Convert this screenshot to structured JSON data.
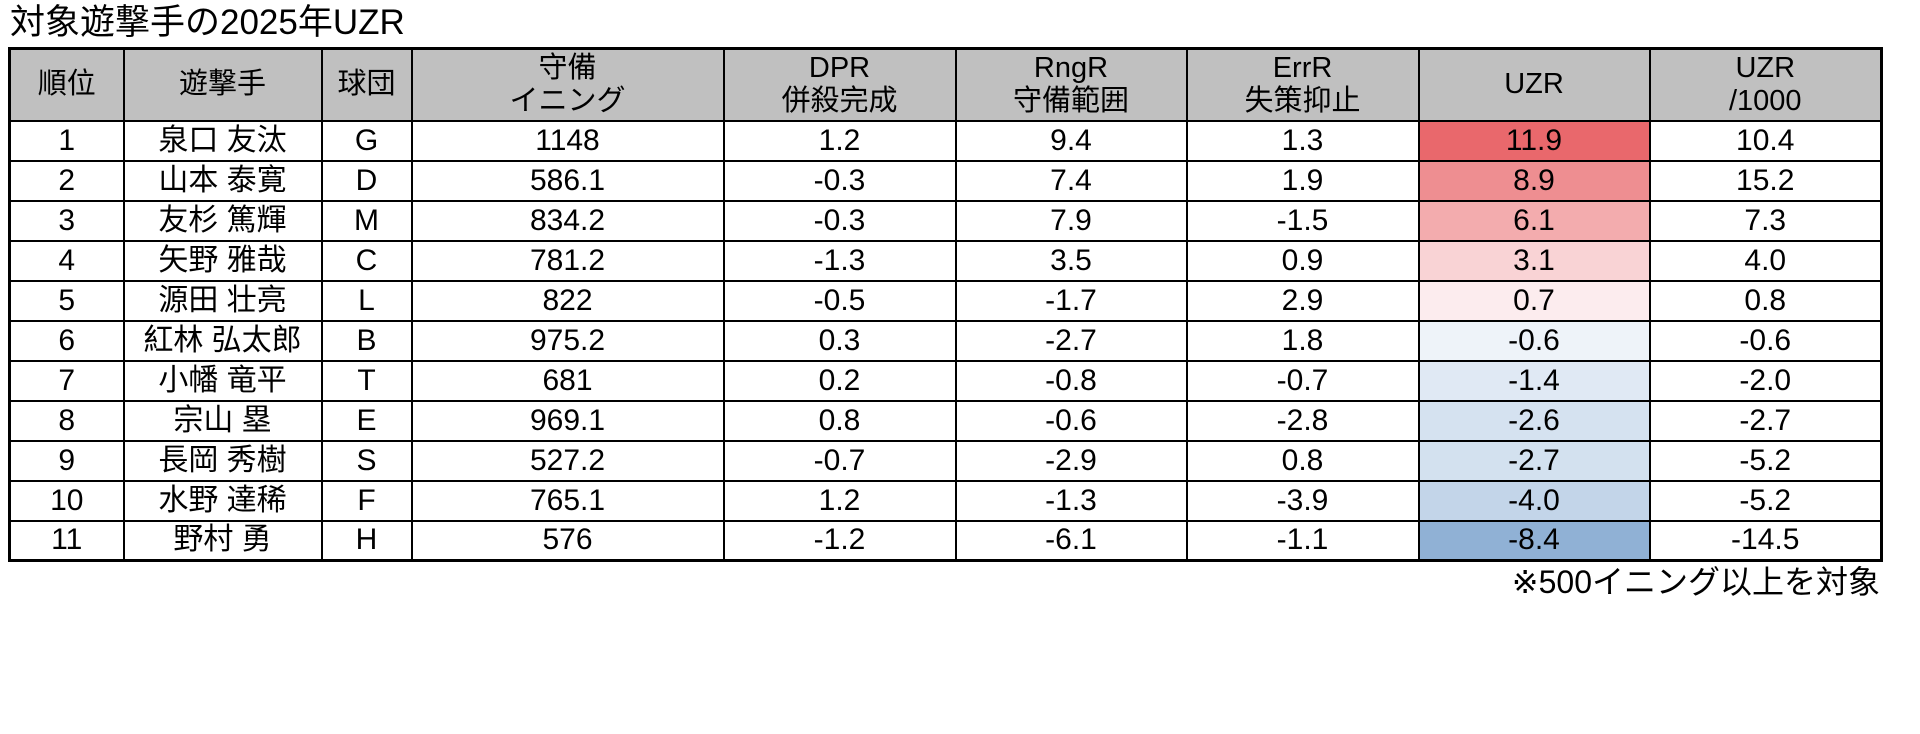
{
  "colors": {
    "header_bg": "#c0c0c0",
    "border": "#000000",
    "uzr_best_red": "#e9686c",
    "uzr_worst_blue": "#90b1d5"
  },
  "chart_data": {
    "type": "table",
    "title": "対象遊撃手の2025年UZR",
    "note": "※500イニング以上を対象",
    "layout_hints": {
      "header_background": "#c0c0c0",
      "uzr_column_conditional_formatting": "red shades for positive UZR, blue shades for negative UZR"
    },
    "columns": [
      {
        "key": "rank",
        "label": "順位"
      },
      {
        "key": "player",
        "label": "遊撃手"
      },
      {
        "key": "team",
        "label": "球団"
      },
      {
        "key": "innings",
        "label": "守備\nイニング"
      },
      {
        "key": "dpr",
        "label": "DPR\n併殺完成"
      },
      {
        "key": "rngr",
        "label": "RngR\n守備範囲"
      },
      {
        "key": "errr",
        "label": "ErrR\n失策抑止"
      },
      {
        "key": "uzr",
        "label": "UZR"
      },
      {
        "key": "uzr_per_1000",
        "label": "UZR\n/1000"
      }
    ],
    "rows": [
      {
        "rank": "1",
        "player": "泉口 友汰",
        "team": "G",
        "innings": "1148",
        "dpr": "1.2",
        "rngr": "9.4",
        "errr": "1.3",
        "uzr": "11.9",
        "uzr_per_1000": "10.4",
        "uzr_cell_color": "#e9686c"
      },
      {
        "rank": "2",
        "player": "山本 泰寛",
        "team": "D",
        "innings": "586.1",
        "dpr": "-0.3",
        "rngr": "7.4",
        "errr": "1.9",
        "uzr": "8.9",
        "uzr_per_1000": "15.2",
        "uzr_cell_color": "#ee8e91"
      },
      {
        "rank": "3",
        "player": "友杉 篤輝",
        "team": "M",
        "innings": "834.2",
        "dpr": "-0.3",
        "rngr": "7.9",
        "errr": "-1.5",
        "uzr": "6.1",
        "uzr_per_1000": "7.3",
        "uzr_cell_color": "#f3acae"
      },
      {
        "rank": "4",
        "player": "矢野 雅哉",
        "team": "C",
        "innings": "781.2",
        "dpr": "-1.3",
        "rngr": "3.5",
        "errr": "0.9",
        "uzr": "3.1",
        "uzr_per_1000": "4.0",
        "uzr_cell_color": "#f9d3d5"
      },
      {
        "rank": "5",
        "player": "源田 壮亮",
        "team": "L",
        "innings": "822",
        "dpr": "-0.5",
        "rngr": "-1.7",
        "errr": "2.9",
        "uzr": "0.7",
        "uzr_per_1000": "0.8",
        "uzr_cell_color": "#fcecee"
      },
      {
        "rank": "6",
        "player": "紅林 弘太郎",
        "team": "B",
        "innings": "975.2",
        "dpr": "0.3",
        "rngr": "-2.7",
        "errr": "1.8",
        "uzr": "-0.6",
        "uzr_per_1000": "-0.6",
        "uzr_cell_color": "#eef3f9"
      },
      {
        "rank": "7",
        "player": "小幡 竜平",
        "team": "T",
        "innings": "681",
        "dpr": "0.2",
        "rngr": "-0.8",
        "errr": "-0.7",
        "uzr": "-1.4",
        "uzr_per_1000": "-2.0",
        "uzr_cell_color": "#e0e9f4"
      },
      {
        "rank": "8",
        "player": "宗山 塁",
        "team": "E",
        "innings": "969.1",
        "dpr": "0.8",
        "rngr": "-0.6",
        "errr": "-2.8",
        "uzr": "-2.6",
        "uzr_per_1000": "-2.7",
        "uzr_cell_color": "#d5e2f0"
      },
      {
        "rank": "9",
        "player": "長岡 秀樹",
        "team": "S",
        "innings": "527.2",
        "dpr": "-0.7",
        "rngr": "-2.9",
        "errr": "0.8",
        "uzr": "-2.7",
        "uzr_per_1000": "-5.2",
        "uzr_cell_color": "#d3e1ef"
      },
      {
        "rank": "10",
        "player": "水野 達稀",
        "team": "F",
        "innings": "765.1",
        "dpr": "1.2",
        "rngr": "-1.3",
        "errr": "-3.9",
        "uzr": "-4.0",
        "uzr_per_1000": "-5.2",
        "uzr_cell_color": "#c3d5e9"
      },
      {
        "rank": "11",
        "player": "野村 勇",
        "team": "H",
        "innings": "576",
        "dpr": "-1.2",
        "rngr": "-6.1",
        "errr": "-1.1",
        "uzr": "-8.4",
        "uzr_per_1000": "-14.5",
        "uzr_cell_color": "#90b1d5"
      }
    ]
  }
}
